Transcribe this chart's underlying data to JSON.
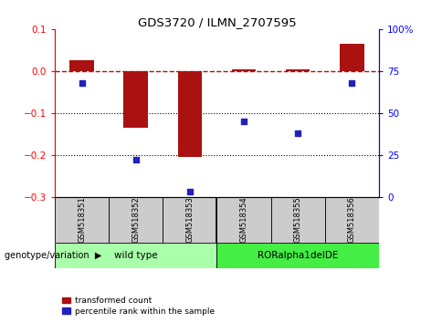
{
  "title": "GDS3720 / ILMN_2707595",
  "samples": [
    "GSM518351",
    "GSM518352",
    "GSM518353",
    "GSM518354",
    "GSM518355",
    "GSM518356"
  ],
  "bar_values": [
    0.025,
    -0.135,
    -0.205,
    0.005,
    0.003,
    0.065
  ],
  "percentile_ranks": [
    68,
    22,
    3,
    45,
    38,
    68
  ],
  "ylim_left": [
    -0.3,
    0.1
  ],
  "ylim_right": [
    0,
    100
  ],
  "yticks_left": [
    -0.3,
    -0.2,
    -0.1,
    0.0,
    0.1
  ],
  "yticks_right": [
    0,
    25,
    50,
    75,
    100
  ],
  "bar_color": "#aa1111",
  "scatter_color": "#2222bb",
  "hline_y": 0.0,
  "dotted_lines": [
    -0.1,
    -0.2
  ],
  "group1_label": "wild type",
  "group2_label": "RORalpha1delDE",
  "group1_color": "#aaffaa",
  "group2_color": "#44ee44",
  "legend_bar_label": "transformed count",
  "legend_scatter_label": "percentile rank within the sample",
  "genotype_label": "genotype/variation",
  "bar_width": 0.45,
  "sample_box_color": "#cccccc",
  "spine_color_left": "red",
  "spine_color_right": "blue"
}
